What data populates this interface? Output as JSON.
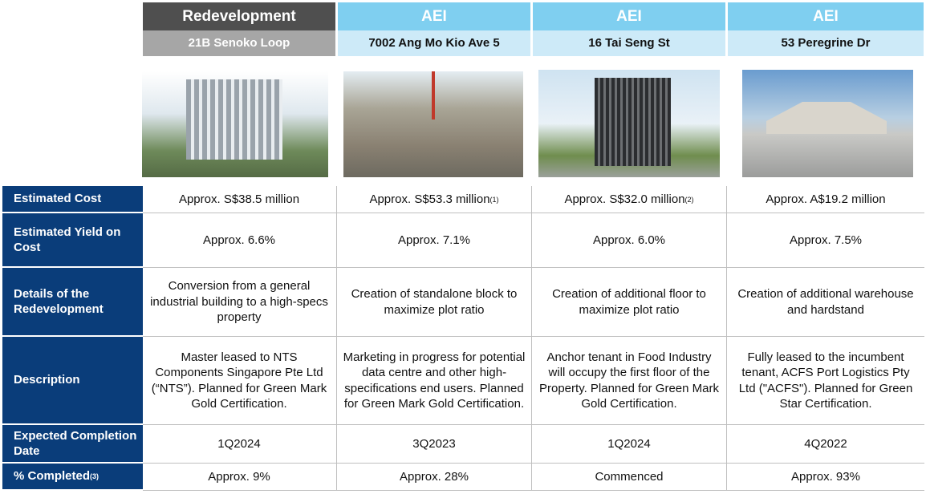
{
  "row_labels": [
    {
      "text": "Estimated Cost"
    },
    {
      "text": "Estimated Yield on Cost"
    },
    {
      "text": "Details of the Redevelopment"
    },
    {
      "text": "Description"
    },
    {
      "text": "Expected Completion Date"
    },
    {
      "text": "% Completed",
      "note": "(3)"
    }
  ],
  "columns": [
    {
      "category": "Redevelopment",
      "address": "21B Senoko Loop",
      "estimated_cost": "Approx. S$38.5 million",
      "estimated_yield": "Approx. 6.6%",
      "details": "Conversion from a general industrial building to a high-specs property",
      "description": "Master leased to NTS Components Singapore Pte Ltd (“NTS”). Planned for Green Mark Gold Certification.",
      "completion_date": "1Q2024",
      "percent_completed": "Approx. 9%"
    },
    {
      "category": "AEI",
      "address": "7002 Ang Mo Kio Ave 5",
      "estimated_cost": "Approx. S$53.3 million",
      "estimated_cost_note": "(1)",
      "estimated_yield": "Approx. 7.1%",
      "details": "Creation of standalone block to maximize plot ratio",
      "description": "Marketing in progress for potential data centre and other high-specifications end users. Planned for Green Mark Gold Certification.",
      "completion_date": "3Q2023",
      "percent_completed": "Approx. 28%"
    },
    {
      "category": "AEI",
      "address": "16 Tai Seng St",
      "estimated_cost": "Approx. S$32.0 million",
      "estimated_cost_note": "(2)",
      "estimated_yield": "Approx. 6.0%",
      "details": "Creation of additional floor to maximize plot ratio",
      "description": "Anchor tenant in Food Industry will occupy the first floor of the Property. Planned for Green Mark Gold Certification.",
      "completion_date": "1Q2024",
      "percent_completed": "Commenced"
    },
    {
      "category": "AEI",
      "address": "53 Peregrine Dr",
      "estimated_cost": "Approx. A$19.2 million",
      "estimated_yield": "Approx. 7.5%",
      "details": "Creation of additional warehouse and hardstand",
      "description": "Fully leased to the incumbent tenant, ACFS Port Logistics Pty Ltd (\"ACFS\"). Planned for Green Star Certification.",
      "completion_date": "4Q2022",
      "percent_completed": "Approx. 93%"
    }
  ]
}
